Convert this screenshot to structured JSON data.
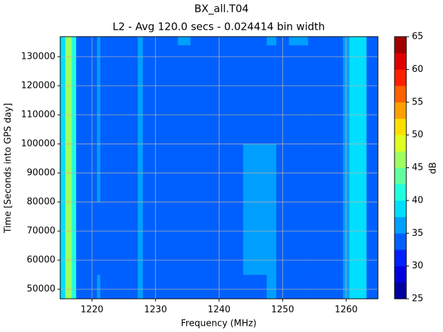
{
  "chart_data": {
    "type": "contourf",
    "title": "BX_all.T04",
    "subtitle": "L2 - Avg 120.0 secs - 0.024414 bin width",
    "xlabel": "Frequency (MHz)",
    "ylabel": "Time [Seconds into GPS day]",
    "clabel": "dB",
    "x_edges": [
      1215,
      1215.8,
      1216.8,
      1217.5,
      1220.8,
      1221.3,
      1227.2,
      1228,
      1233.5,
      1235.5,
      1243.8,
      1245.5,
      1247.5,
      1249,
      1251,
      1254,
      1259.5,
      1260.5,
      1261.8,
      1263.2,
      1265
    ],
    "y_edges": [
      46700,
      55000,
      80000,
      100000,
      134000,
      136900
    ],
    "z": [
      [
        38,
        45,
        40,
        34,
        37,
        34,
        37,
        34,
        34,
        34,
        34,
        34,
        37,
        34,
        34,
        34,
        37,
        38,
        39,
        34
      ],
      [
        38,
        45,
        40,
        34,
        34,
        34,
        37,
        34,
        34,
        34,
        37,
        37,
        37,
        34,
        34,
        34,
        37,
        38,
        39,
        34
      ],
      [
        38,
        45,
        40,
        34,
        37,
        34,
        37,
        34,
        34,
        34,
        37,
        37,
        37,
        34,
        34,
        34,
        37,
        38,
        39,
        34
      ],
      [
        38,
        45,
        40,
        34,
        37,
        34,
        37,
        34,
        34,
        34,
        34,
        34,
        34,
        34,
        34,
        34,
        37,
        38,
        39,
        34
      ],
      [
        38,
        45,
        40,
        34,
        37,
        34,
        37,
        34,
        37,
        34,
        34,
        34,
        37,
        34,
        37,
        34,
        37,
        38,
        39,
        34
      ]
    ],
    "levels": [
      25,
      27.5,
      30,
      32.5,
      35,
      37.5,
      40,
      42.5,
      45,
      47.5,
      50,
      52.5,
      55,
      57.5,
      60,
      62.5,
      65
    ],
    "colors": [
      "#00009f",
      "#0000df",
      "#0020ff",
      "#0060ff",
      "#009fff",
      "#00dfff",
      "#20ffdf",
      "#60ff9f",
      "#9fff60",
      "#dfff20",
      "#ffdf00",
      "#ff9f00",
      "#ff6000",
      "#ff2000",
      "#df0000",
      "#9f0000"
    ],
    "xlim": [
      1215,
      1265
    ],
    "xticks": [
      1220,
      1230,
      1240,
      1250,
      1260
    ],
    "ylim": [
      46700,
      136900
    ],
    "yticks": [
      50000,
      60000,
      70000,
      80000,
      90000,
      100000,
      110000,
      120000,
      130000
    ],
    "clim": [
      25,
      65
    ],
    "cticks": [
      25,
      30,
      35,
      40,
      45,
      50,
      55,
      60,
      65
    ],
    "grid": true
  }
}
